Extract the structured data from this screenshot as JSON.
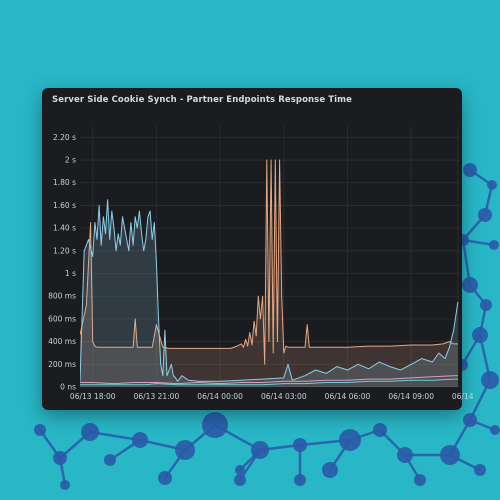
{
  "panel": {
    "title": "Server Side Cookie Synch - Partner Endpoints Response Time"
  },
  "colors": {
    "background": "#29b6c6",
    "panel_bg": "#1b1c1f",
    "grid": "#2c2e33",
    "node": "#2a5aa8",
    "series_orange": "#e5a884",
    "series_blue": "#8ecfe8",
    "series_pink": "#d9a0c8",
    "series_teal": "#6fd0d9"
  },
  "chart_data": {
    "type": "line",
    "title": "Server Side Cookie Synch - Partner Endpoints Response Time",
    "xlabel": "",
    "ylabel": "",
    "y_unit": "s",
    "ylim": [
      0,
      2.3
    ],
    "y_ticks": [
      {
        "value": 0,
        "label": "0 ns"
      },
      {
        "value": 0.2,
        "label": "200 ms"
      },
      {
        "value": 0.4,
        "label": "400 ms"
      },
      {
        "value": 0.6,
        "label": "600 ms"
      },
      {
        "value": 0.8,
        "label": "800 ms"
      },
      {
        "value": 1.0,
        "label": "1 s"
      },
      {
        "value": 1.2,
        "label": "1.20 s"
      },
      {
        "value": 1.4,
        "label": "1.40 s"
      },
      {
        "value": 1.6,
        "label": "1.60 s"
      },
      {
        "value": 1.8,
        "label": "1.80 s"
      },
      {
        "value": 2.0,
        "label": "2 s"
      },
      {
        "value": 2.2,
        "label": "2.20 s"
      }
    ],
    "x_unit": "hours since 06/13 18:00",
    "xlim": [
      -0.6,
      17.3
    ],
    "x_ticks": [
      {
        "value": 0,
        "label": "06/13 18:00"
      },
      {
        "value": 3,
        "label": "06/13 21:00"
      },
      {
        "value": 6,
        "label": "06/14 00:00"
      },
      {
        "value": 9,
        "label": "06/14 03:00"
      },
      {
        "value": 12,
        "label": "06/14 06:00"
      },
      {
        "value": 15,
        "label": "06/14 09:00"
      },
      {
        "value": 17.2,
        "label": "06/14"
      }
    ],
    "grid": true,
    "legend": "none",
    "series": [
      {
        "color": "#e5a884",
        "fill": true,
        "x": [
          -0.6,
          -0.3,
          -0.1,
          0.0,
          0.1,
          0.2,
          0.3,
          0.5,
          0.8,
          1.0,
          1.5,
          1.9,
          2.0,
          2.1,
          2.3,
          2.6,
          2.8,
          3.0,
          3.3,
          3.6,
          4.0,
          4.4,
          5.0,
          5.5,
          6.0,
          6.5,
          6.8,
          7.0,
          7.1,
          7.2,
          7.3,
          7.4,
          7.5,
          7.6,
          7.7,
          7.8,
          7.9,
          8.0,
          8.1,
          8.2,
          8.3,
          8.4,
          8.5,
          8.6,
          8.7,
          8.8,
          8.9,
          9.0,
          9.1,
          9.2,
          9.3,
          9.4,
          9.6,
          9.8,
          10.0,
          10.1,
          10.2,
          10.4,
          11.0,
          12.0,
          13.0,
          14.0,
          15.0,
          16.0,
          16.5,
          16.8,
          17.0,
          17.2
        ],
        "values": [
          0.46,
          0.72,
          1.45,
          0.4,
          0.36,
          0.35,
          0.35,
          0.35,
          0.35,
          0.35,
          0.35,
          0.35,
          0.6,
          0.35,
          0.35,
          0.35,
          0.35,
          0.55,
          0.35,
          0.34,
          0.34,
          0.34,
          0.34,
          0.34,
          0.34,
          0.34,
          0.36,
          0.38,
          0.35,
          0.42,
          0.36,
          0.48,
          0.37,
          0.58,
          0.45,
          0.8,
          0.6,
          0.8,
          0.2,
          2.0,
          0.4,
          2.0,
          0.3,
          2.0,
          0.4,
          2.0,
          0.8,
          0.3,
          0.36,
          0.35,
          0.35,
          0.35,
          0.35,
          0.35,
          0.35,
          0.55,
          0.35,
          0.35,
          0.35,
          0.35,
          0.36,
          0.36,
          0.37,
          0.37,
          0.38,
          0.4,
          0.38,
          0.38
        ]
      },
      {
        "color": "#8ecfe8",
        "fill": true,
        "x": [
          -0.6,
          -0.4,
          -0.2,
          0.0,
          0.1,
          0.2,
          0.3,
          0.4,
          0.5,
          0.6,
          0.7,
          0.8,
          0.9,
          1.0,
          1.1,
          1.2,
          1.3,
          1.4,
          1.5,
          1.6,
          1.7,
          1.8,
          1.9,
          2.0,
          2.1,
          2.2,
          2.3,
          2.4,
          2.5,
          2.6,
          2.7,
          2.8,
          2.9,
          3.0,
          3.1,
          3.2,
          3.3,
          3.4,
          3.5,
          3.6,
          3.7,
          3.8,
          3.9,
          4.0,
          4.2,
          4.5,
          5.0,
          6.0,
          7.0,
          8.0,
          9.0,
          9.2,
          9.4,
          10.0,
          10.5,
          11.0,
          11.5,
          12.0,
          12.5,
          13.0,
          13.5,
          14.0,
          14.5,
          15.0,
          15.5,
          16.0,
          16.3,
          16.6,
          16.8,
          17.0,
          17.2
        ],
        "values": [
          0.05,
          1.2,
          1.3,
          1.15,
          1.45,
          1.3,
          1.6,
          1.25,
          1.5,
          1.35,
          1.65,
          1.3,
          1.55,
          1.4,
          1.2,
          1.35,
          1.25,
          1.5,
          1.4,
          1.3,
          1.2,
          1.45,
          1.25,
          1.5,
          1.4,
          1.55,
          1.35,
          1.2,
          1.3,
          1.5,
          1.55,
          1.3,
          1.45,
          1.1,
          0.6,
          0.2,
          0.1,
          0.5,
          0.1,
          0.15,
          0.2,
          0.1,
          0.08,
          0.05,
          0.1,
          0.06,
          0.05,
          0.05,
          0.06,
          0.07,
          0.08,
          0.2,
          0.06,
          0.1,
          0.15,
          0.12,
          0.18,
          0.15,
          0.2,
          0.16,
          0.22,
          0.18,
          0.15,
          0.2,
          0.25,
          0.22,
          0.3,
          0.25,
          0.35,
          0.5,
          0.75
        ]
      },
      {
        "color": "#d9a0c8",
        "fill": false,
        "x": [
          -0.6,
          0.0,
          1.0,
          2.0,
          3.0,
          4.0,
          5.0,
          6.0,
          7.0,
          8.0,
          9.0,
          10.0,
          11.0,
          12.0,
          13.0,
          14.0,
          15.0,
          16.0,
          17.0,
          17.2
        ],
        "values": [
          0.04,
          0.04,
          0.03,
          0.04,
          0.04,
          0.03,
          0.04,
          0.03,
          0.04,
          0.04,
          0.05,
          0.05,
          0.06,
          0.06,
          0.07,
          0.07,
          0.08,
          0.09,
          0.1,
          0.1
        ]
      },
      {
        "color": "#6fd0d9",
        "fill": false,
        "x": [
          -0.6,
          1.0,
          2.5,
          3.0,
          4.0,
          5.0,
          6.0,
          7.0,
          8.0,
          9.0,
          10.0,
          11.0,
          12.0,
          13.0,
          14.0,
          15.0,
          16.0,
          17.0,
          17.2
        ],
        "values": [
          0.02,
          0.02,
          0.02,
          0.03,
          0.02,
          0.02,
          0.02,
          0.02,
          0.02,
          0.03,
          0.03,
          0.04,
          0.04,
          0.05,
          0.05,
          0.06,
          0.06,
          0.07,
          0.07
        ]
      }
    ]
  }
}
